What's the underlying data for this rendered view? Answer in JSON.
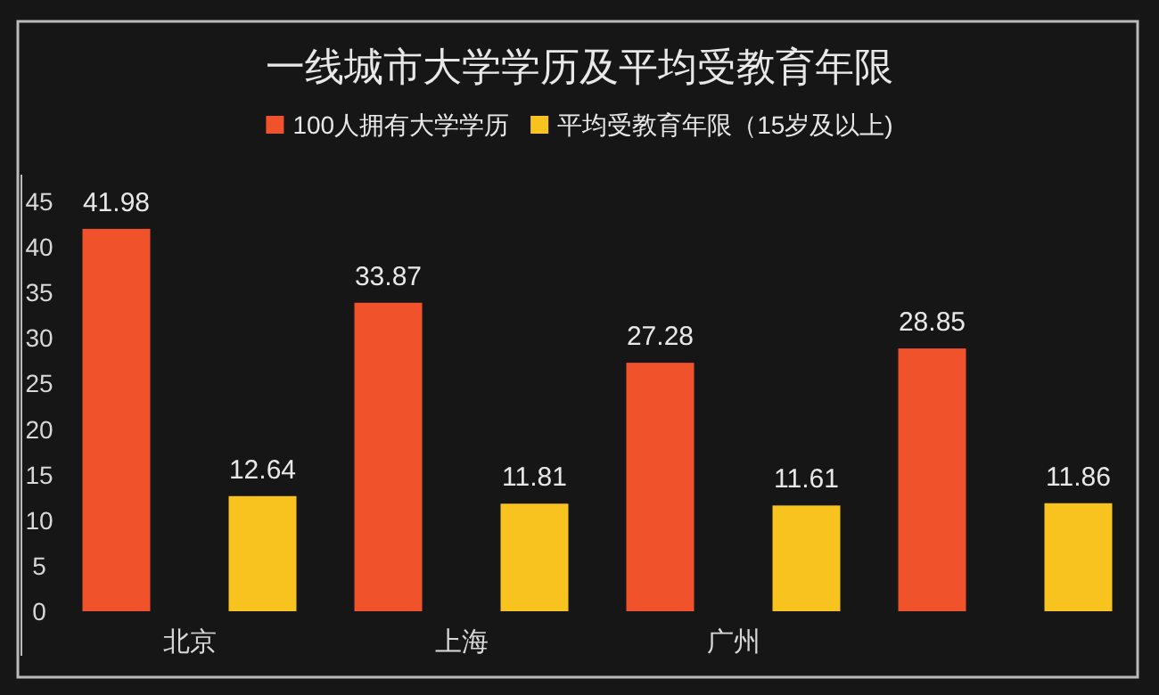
{
  "chart_data": {
    "type": "bar",
    "title": "一线城市大学学历及平均受教育年限",
    "categories": [
      "北京",
      "上海",
      "广州",
      null
    ],
    "series": [
      {
        "name": "100人拥有大学学历",
        "color": "#f0532b",
        "values": [
          41.98,
          33.87,
          27.28,
          28.85
        ]
      },
      {
        "name": "平均受教育年限（15岁及以上)",
        "color": "#f9c31f",
        "values": [
          12.64,
          11.81,
          11.61,
          11.86
        ]
      }
    ],
    "ylim": [
      0,
      45
    ],
    "yticks": [
      0,
      5,
      10,
      15,
      20,
      25,
      30,
      35,
      40,
      45
    ],
    "data_labels": true,
    "legend": "top",
    "grid": false
  }
}
